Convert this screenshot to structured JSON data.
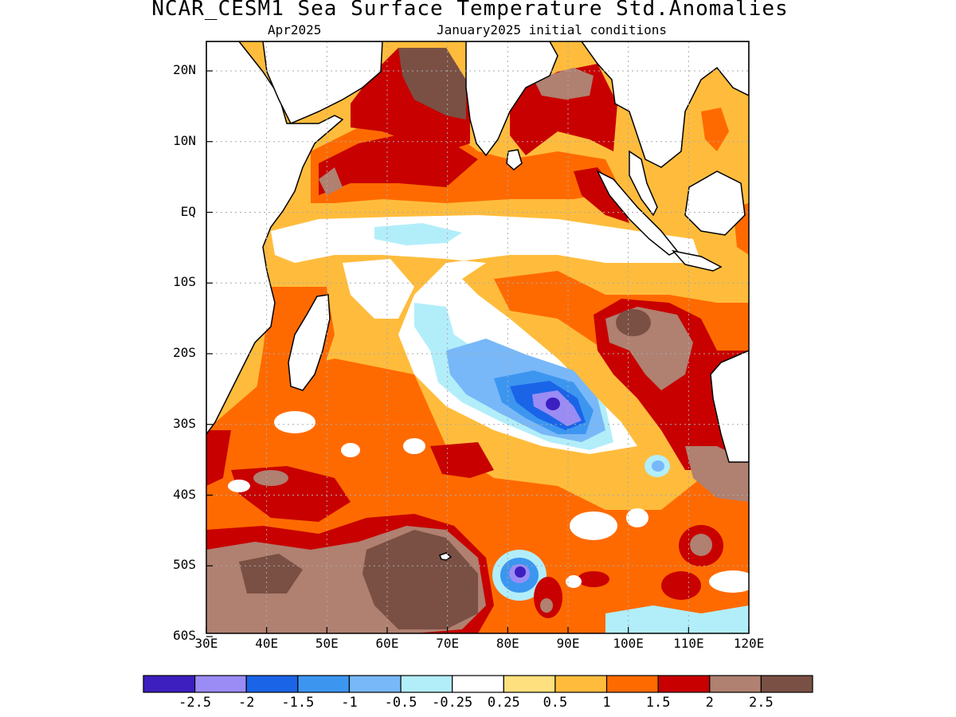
{
  "header": {
    "title": "NCAR_CESM1 Sea Surface Temperature Std.Anomalies",
    "subtitle_left": "Apr2025",
    "subtitle_right": "January2025 initial conditions"
  },
  "map": {
    "lat_labels": [
      "20N",
      "10N",
      "EQ",
      "10S",
      "20S",
      "30S",
      "40S",
      "50S",
      "60S"
    ],
    "lon_labels": [
      "30E",
      "40E",
      "50E",
      "60E",
      "70E",
      "80E",
      "90E",
      "100E",
      "110E",
      "120E"
    ]
  },
  "colorbar": {
    "colors": [
      "#3c1fbe",
      "#9a8cf4",
      "#1a64e8",
      "#3c96f0",
      "#78b8f8",
      "#b2eefa",
      "#ffffff",
      "#ffe07e",
      "#ffbc3c",
      "#ff6a00",
      "#c80000",
      "#b08070",
      "#7a5044"
    ],
    "labels": [
      "-2.5",
      "-2",
      "-1.5",
      "-1",
      "-0.5",
      "-0.25",
      "0.25",
      "0.5",
      "1",
      "1.5",
      "2",
      "2.5"
    ]
  }
}
